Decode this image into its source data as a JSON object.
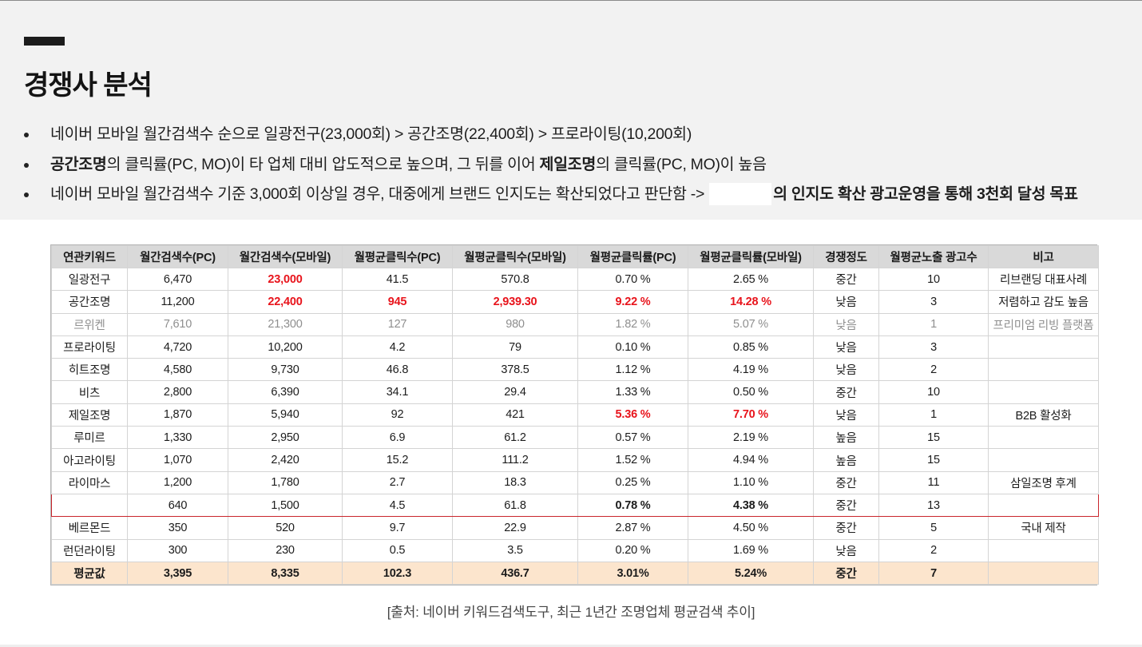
{
  "page": {
    "title": "경쟁사 분석",
    "bullets": [
      {
        "parts": [
          {
            "text": "네이버 모바일 월간검색수 순으로 일광전구(23,000회) > 공간조명(22,400회) > 프로라이팅(10,200회)",
            "bold": false
          }
        ]
      },
      {
        "parts": [
          {
            "text": "공간조명",
            "bold": true
          },
          {
            "text": "의 클릭률(PC, MO)이 타 업체 대비 압도적으로 높으며, 그 뒤를 이어 ",
            "bold": false
          },
          {
            "text": "제일조명",
            "bold": true
          },
          {
            "text": "의 클릭률(PC, MO)이 높음",
            "bold": false
          }
        ]
      },
      {
        "parts": [
          {
            "text": "네이버 모바일 월간검색수 기준 3,000회 이상일 경우, 대중에게 브랜드 인지도는 확산되었다고 판단함 ->",
            "bold": false
          },
          {
            "text": "",
            "redacted": true
          },
          {
            "text": "의 인지도 확산 광고운영을 통해 3천회 달성 목표",
            "bold": true
          }
        ]
      }
    ]
  },
  "table": {
    "columns": [
      "연관키워드",
      "월간검색수(PC)",
      "월간검색수(모바일)",
      "월평균클릭수(PC)",
      "월평균클릭수(모바일)",
      "월평균클릭률(PC)",
      "월평균클릭률(모바일)",
      "경쟁정도",
      "월평균노출 광고수",
      "비고"
    ],
    "rows": [
      {
        "cells": [
          "일광전구",
          "6,470",
          "23,000",
          "41.5",
          "570.8",
          "0.70 %",
          "2.65 %",
          "중간",
          "10",
          "리브랜딩 대표사례"
        ],
        "red": [
          2
        ],
        "style": ""
      },
      {
        "cells": [
          "공간조명",
          "11,200",
          "22,400",
          "945",
          "2,939.30",
          "9.22 %",
          "14.28 %",
          "낮음",
          "3",
          "저렴하고 감도 높음"
        ],
        "red": [
          2,
          3,
          4,
          5,
          6
        ],
        "style": ""
      },
      {
        "cells": [
          "르위켄",
          "7,610",
          "21,300",
          "127",
          "980",
          "1.82 %",
          "5.07 %",
          "낮음",
          "1",
          "프리미엄 리빙 플랫폼"
        ],
        "red": [],
        "style": "muted"
      },
      {
        "cells": [
          "프로라이팅",
          "4,720",
          "10,200",
          "4.2",
          "79",
          "0.10 %",
          "0.85 %",
          "낮음",
          "3",
          ""
        ],
        "red": [],
        "style": ""
      },
      {
        "cells": [
          "히트조명",
          "4,580",
          "9,730",
          "46.8",
          "378.5",
          "1.12 %",
          "4.19 %",
          "낮음",
          "2",
          ""
        ],
        "red": [],
        "style": ""
      },
      {
        "cells": [
          "비츠",
          "2,800",
          "6,390",
          "34.1",
          "29.4",
          "1.33 %",
          "0.50 %",
          "중간",
          "10",
          ""
        ],
        "red": [],
        "style": ""
      },
      {
        "cells": [
          "제일조명",
          "1,870",
          "5,940",
          "92",
          "421",
          "5.36 %",
          "7.70 %",
          "낮음",
          "1",
          "B2B 활성화"
        ],
        "red": [
          5,
          6
        ],
        "style": ""
      },
      {
        "cells": [
          "루미르",
          "1,330",
          "2,950",
          "6.9",
          "61.2",
          "0.57 %",
          "2.19 %",
          "높음",
          "15",
          ""
        ],
        "red": [],
        "style": ""
      },
      {
        "cells": [
          "아고라이팅",
          "1,070",
          "2,420",
          "15.2",
          "111.2",
          "1.52 %",
          "4.94 %",
          "높음",
          "15",
          ""
        ],
        "red": [],
        "style": ""
      },
      {
        "cells": [
          "라이마스",
          "1,200",
          "1,780",
          "2.7",
          "18.3",
          "0.25 %",
          "1.10 %",
          "중간",
          "11",
          "삼일조명 후계"
        ],
        "red": [],
        "style": ""
      },
      {
        "cells": [
          "",
          "640",
          "1,500",
          "4.5",
          "61.8",
          "0.78 %",
          "4.38 %",
          "중간",
          "13",
          ""
        ],
        "red": [],
        "bold": [
          5,
          6
        ],
        "style": "highlight"
      },
      {
        "cells": [
          "베르몬드",
          "350",
          "520",
          "9.7",
          "22.9",
          "2.87 %",
          "4.50 %",
          "중간",
          "5",
          "국내 제작"
        ],
        "red": [],
        "style": ""
      },
      {
        "cells": [
          "런던라이팅",
          "300",
          "230",
          "0.5",
          "3.5",
          "0.20 %",
          "1.69 %",
          "낮음",
          "2",
          ""
        ],
        "red": [],
        "style": ""
      },
      {
        "cells": [
          "평균값",
          "3,395",
          "8,335",
          "102.3",
          "436.7",
          "3.01%",
          "5.24%",
          "중간",
          "7",
          ""
        ],
        "red": [],
        "style": "avg"
      }
    ]
  },
  "source_note": "[출처: 네이버 키워드검색도구, 최근 1년간 조명업체 평균검색 추이]",
  "colors": {
    "header_band": "#f2f2f2",
    "table_header": "#d9d9d9",
    "highlight_red": "#e8141c",
    "highlight_row_border": "#c9252c",
    "average_row": "#fce5cd",
    "muted_text": "#8f8f8f"
  }
}
